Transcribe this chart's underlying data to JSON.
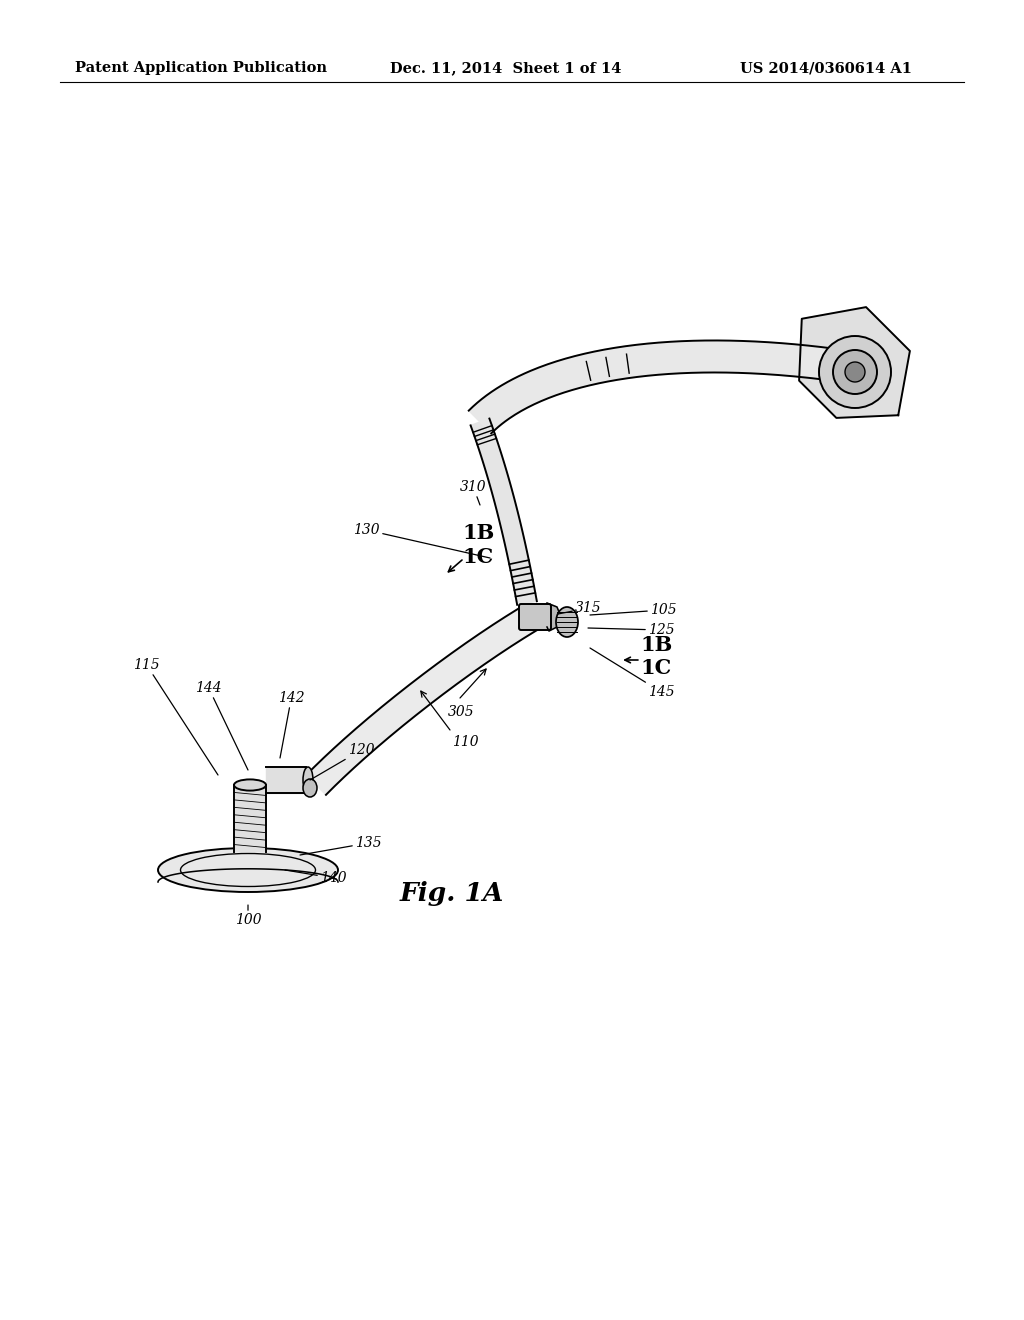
{
  "background_color": "#ffffff",
  "header_left": "Patent Application Publication",
  "header_center": "Dec. 11, 2014  Sheet 1 of 14",
  "header_right": "US 2014/0360614 A1",
  "figure_label": "Fig. 1A"
}
